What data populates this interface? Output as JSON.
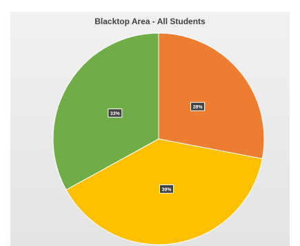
{
  "chart_data": {
    "type": "pie",
    "title": "Blacktop Area - All Students",
    "slices": [
      {
        "value": 28,
        "label": "28%",
        "color": "#ed7d31"
      },
      {
        "value": 39,
        "label": "39%",
        "color": "#ffc000"
      },
      {
        "value": 33,
        "label": "33%",
        "color": "#70ad47"
      }
    ],
    "start_angle_deg": 0,
    "direction": "clockwise",
    "legend": "none"
  }
}
